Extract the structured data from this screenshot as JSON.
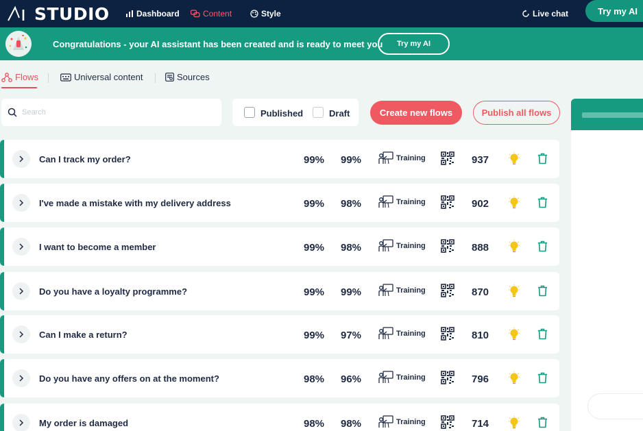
{
  "nav": {
    "logo_text": "STUDIO",
    "links": [
      {
        "label": "Dashboard",
        "icon": "bar-chart-icon"
      },
      {
        "label": "Content",
        "icon": "chat-bubbles-icon",
        "active": true
      },
      {
        "label": "Style",
        "icon": "palette-icon"
      }
    ],
    "live_chat": "Live chat",
    "try_button": "Try my AI"
  },
  "banner": {
    "message": "Congratulations - your AI assistant has been created and is ready to meet you",
    "button": "Try my AI"
  },
  "tabs": [
    {
      "label": "Flows",
      "icon": "flow-icon",
      "active": true
    },
    {
      "label": "Universal content",
      "icon": "keyboard-icon"
    },
    {
      "label": "Sources",
      "icon": "sources-icon"
    }
  ],
  "toolbar": {
    "search_placeholder": "Search",
    "filter_published": "Published",
    "filter_draft": "Draft",
    "create_button": "Create new flows",
    "publish_button": "Publish all flows"
  },
  "flows": [
    {
      "title": "Can I track my order?",
      "pct1": "99%",
      "pct2": "99%",
      "status": "Training",
      "count": "937"
    },
    {
      "title": "I've made a mistake with my delivery address",
      "pct1": "99%",
      "pct2": "98%",
      "status": "Training",
      "count": "902"
    },
    {
      "title": "I want to become a member",
      "pct1": "99%",
      "pct2": "98%",
      "status": "Training",
      "count": "888"
    },
    {
      "title": "Do you have a loyalty programme?",
      "pct1": "99%",
      "pct2": "99%",
      "status": "Training",
      "count": "870"
    },
    {
      "title": "Can I make a return?",
      "pct1": "99%",
      "pct2": "97%",
      "status": "Training",
      "count": "810"
    },
    {
      "title": "Do you have any offers on at the moment?",
      "pct1": "98%",
      "pct2": "96%",
      "status": "Training",
      "count": "796"
    },
    {
      "title": "My order is damaged",
      "pct1": "98%",
      "pct2": "98%",
      "status": "Training",
      "count": "714"
    }
  ],
  "colors": {
    "navy": "#0d2240",
    "teal": "#169a80",
    "coral": "#ef5a62",
    "bulb": "#f5c518"
  }
}
